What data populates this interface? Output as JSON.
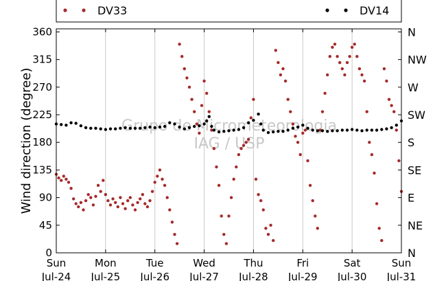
{
  "chart_data": {
    "type": "scatter",
    "ylabel": "Wind direction (degree)",
    "ylim": [
      0,
      365
    ],
    "xlim": [
      0,
      7
    ],
    "grid": "x-major",
    "legend_placement": "top, spanning plot",
    "y_ticks": [
      0,
      45,
      90,
      135,
      180,
      225,
      270,
      315,
      360
    ],
    "y_ticks_right": [
      {
        "value": 0,
        "label": "N"
      },
      {
        "value": 45,
        "label": "NE"
      },
      {
        "value": 90,
        "label": "E"
      },
      {
        "value": 135,
        "label": "SE"
      },
      {
        "value": 180,
        "label": "S"
      },
      {
        "value": 225,
        "label": "SW"
      },
      {
        "value": 270,
        "label": "W"
      },
      {
        "value": 315,
        "label": "NW"
      },
      {
        "value": 360,
        "label": "N"
      }
    ],
    "x_ticks": [
      {
        "value": 0,
        "day": "Sun",
        "date": "Jul-24"
      },
      {
        "value": 1,
        "day": "Mon",
        "date": "Jul-25"
      },
      {
        "value": 2,
        "day": "Tue",
        "date": "Jul-26"
      },
      {
        "value": 3,
        "day": "Wed",
        "date": "Jul-27"
      },
      {
        "value": 4,
        "day": "Thu",
        "date": "Jul-28"
      },
      {
        "value": 5,
        "day": "Fri",
        "date": "Jul-29"
      },
      {
        "value": 6,
        "day": "Sat",
        "date": "Jul-30"
      },
      {
        "value": 7,
        "day": "Sun",
        "date": "Jul-31"
      }
    ],
    "watermark": [
      "Grupo de Micrometeorologia",
      "IAG / USP"
    ],
    "series": [
      {
        "name": "DV33",
        "color": "#a52a2a",
        "points": [
          [
            0.0,
            128
          ],
          [
            0.05,
            122
          ],
          [
            0.1,
            118
          ],
          [
            0.15,
            125
          ],
          [
            0.2,
            120
          ],
          [
            0.25,
            115
          ],
          [
            0.3,
            105
          ],
          [
            0.35,
            88
          ],
          [
            0.4,
            80
          ],
          [
            0.45,
            75
          ],
          [
            0.5,
            82
          ],
          [
            0.55,
            70
          ],
          [
            0.6,
            85
          ],
          [
            0.65,
            95
          ],
          [
            0.7,
            90
          ],
          [
            0.75,
            78
          ],
          [
            0.8,
            92
          ],
          [
            0.85,
            110
          ],
          [
            0.9,
            100
          ],
          [
            0.95,
            118
          ],
          [
            1.0,
            95
          ],
          [
            1.05,
            85
          ],
          [
            1.1,
            78
          ],
          [
            1.15,
            88
          ],
          [
            1.2,
            82
          ],
          [
            1.25,
            75
          ],
          [
            1.3,
            90
          ],
          [
            1.35,
            80
          ],
          [
            1.4,
            72
          ],
          [
            1.45,
            85
          ],
          [
            1.5,
            90
          ],
          [
            1.55,
            78
          ],
          [
            1.6,
            70
          ],
          [
            1.65,
            82
          ],
          [
            1.7,
            88
          ],
          [
            1.75,
            95
          ],
          [
            1.8,
            80
          ],
          [
            1.85,
            75
          ],
          [
            1.9,
            85
          ],
          [
            1.95,
            100
          ],
          [
            2.0,
            115
          ],
          [
            2.05,
            125
          ],
          [
            2.1,
            135
          ],
          [
            2.15,
            120
          ],
          [
            2.2,
            110
          ],
          [
            2.25,
            90
          ],
          [
            2.3,
            70
          ],
          [
            2.35,
            50
          ],
          [
            2.4,
            30
          ],
          [
            2.45,
            15
          ],
          [
            2.5,
            340
          ],
          [
            2.55,
            320
          ],
          [
            2.6,
            300
          ],
          [
            2.65,
            285
          ],
          [
            2.7,
            270
          ],
          [
            2.75,
            250
          ],
          [
            2.8,
            230
          ],
          [
            2.85,
            210
          ],
          [
            2.9,
            195
          ],
          [
            2.95,
            240
          ],
          [
            3.0,
            280
          ],
          [
            3.05,
            260
          ],
          [
            3.1,
            230
          ],
          [
            3.15,
            200
          ],
          [
            3.2,
            170
          ],
          [
            3.25,
            140
          ],
          [
            3.3,
            110
          ],
          [
            3.35,
            60
          ],
          [
            3.4,
            30
          ],
          [
            3.45,
            15
          ],
          [
            3.5,
            60
          ],
          [
            3.55,
            90
          ],
          [
            3.6,
            120
          ],
          [
            3.65,
            140
          ],
          [
            3.7,
            160
          ],
          [
            3.75,
            170
          ],
          [
            3.8,
            175
          ],
          [
            3.85,
            180
          ],
          [
            3.9,
            185
          ],
          [
            3.95,
            220
          ],
          [
            4.0,
            250
          ],
          [
            4.05,
            120
          ],
          [
            4.1,
            95
          ],
          [
            4.15,
            85
          ],
          [
            4.2,
            70
          ],
          [
            4.25,
            40
          ],
          [
            4.3,
            30
          ],
          [
            4.35,
            45
          ],
          [
            4.4,
            20
          ],
          [
            4.45,
            330
          ],
          [
            4.5,
            310
          ],
          [
            4.55,
            290
          ],
          [
            4.6,
            300
          ],
          [
            4.65,
            280
          ],
          [
            4.7,
            250
          ],
          [
            4.75,
            230
          ],
          [
            4.8,
            210
          ],
          [
            4.85,
            190
          ],
          [
            4.9,
            180
          ],
          [
            4.95,
            160
          ],
          [
            5.0,
            195
          ],
          [
            5.05,
            200
          ],
          [
            5.1,
            150
          ],
          [
            5.15,
            110
          ],
          [
            5.2,
            85
          ],
          [
            5.25,
            60
          ],
          [
            5.3,
            40
          ],
          [
            5.35,
            200
          ],
          [
            5.4,
            230
          ],
          [
            5.45,
            260
          ],
          [
            5.5,
            290
          ],
          [
            5.55,
            320
          ],
          [
            5.6,
            335
          ],
          [
            5.65,
            340
          ],
          [
            5.7,
            320
          ],
          [
            5.75,
            310
          ],
          [
            5.8,
            300
          ],
          [
            5.85,
            290
          ],
          [
            5.9,
            310
          ],
          [
            5.95,
            320
          ],
          [
            6.0,
            335
          ],
          [
            6.05,
            340
          ],
          [
            6.1,
            320
          ],
          [
            6.15,
            300
          ],
          [
            6.2,
            290
          ],
          [
            6.25,
            280
          ],
          [
            6.3,
            230
          ],
          [
            6.35,
            180
          ],
          [
            6.4,
            160
          ],
          [
            6.45,
            130
          ],
          [
            6.5,
            80
          ],
          [
            6.55,
            40
          ],
          [
            6.6,
            20
          ],
          [
            6.65,
            300
          ],
          [
            6.7,
            280
          ],
          [
            6.75,
            250
          ],
          [
            6.8,
            240
          ],
          [
            6.85,
            230
          ],
          [
            6.9,
            200
          ],
          [
            6.95,
            150
          ],
          [
            7.0,
            100
          ]
        ]
      },
      {
        "name": "DV14",
        "color": "#000000",
        "points": [
          [
            0.0,
            210
          ],
          [
            0.1,
            209
          ],
          [
            0.2,
            208
          ],
          [
            0.3,
            212
          ],
          [
            0.4,
            211
          ],
          [
            0.5,
            207
          ],
          [
            0.6,
            204
          ],
          [
            0.7,
            203
          ],
          [
            0.8,
            203
          ],
          [
            0.9,
            202
          ],
          [
            1.0,
            201
          ],
          [
            1.1,
            202
          ],
          [
            1.2,
            202
          ],
          [
            1.3,
            203
          ],
          [
            1.4,
            204
          ],
          [
            1.5,
            203
          ],
          [
            1.6,
            203
          ],
          [
            1.7,
            203
          ],
          [
            1.8,
            204
          ],
          [
            1.9,
            205
          ],
          [
            2.0,
            204
          ],
          [
            2.1,
            205
          ],
          [
            2.2,
            206
          ],
          [
            2.3,
            212
          ],
          [
            2.4,
            210
          ],
          [
            2.5,
            205
          ],
          [
            2.6,
            202
          ],
          [
            2.7,
            204
          ],
          [
            2.8,
            206
          ],
          [
            2.9,
            207
          ],
          [
            3.0,
            210
          ],
          [
            3.05,
            215
          ],
          [
            3.1,
            222
          ],
          [
            3.15,
            206
          ],
          [
            3.2,
            200
          ],
          [
            3.3,
            197
          ],
          [
            3.4,
            198
          ],
          [
            3.5,
            199
          ],
          [
            3.6,
            200
          ],
          [
            3.7,
            201
          ],
          [
            3.8,
            204
          ],
          [
            3.9,
            212
          ],
          [
            4.0,
            216
          ],
          [
            4.1,
            226
          ],
          [
            4.15,
            210
          ],
          [
            4.2,
            200
          ],
          [
            4.3,
            196
          ],
          [
            4.4,
            197
          ],
          [
            4.5,
            198
          ],
          [
            4.6,
            198
          ],
          [
            4.7,
            200
          ],
          [
            4.8,
            203
          ],
          [
            4.9,
            205
          ],
          [
            5.0,
            208
          ],
          [
            5.1,
            203
          ],
          [
            5.2,
            200
          ],
          [
            5.3,
            199
          ],
          [
            5.4,
            199
          ],
          [
            5.5,
            198
          ],
          [
            5.6,
            199
          ],
          [
            5.7,
            199
          ],
          [
            5.8,
            200
          ],
          [
            5.9,
            200
          ],
          [
            6.0,
            201
          ],
          [
            6.1,
            200
          ],
          [
            6.2,
            199
          ],
          [
            6.3,
            200
          ],
          [
            6.4,
            200
          ],
          [
            6.5,
            200
          ],
          [
            6.6,
            201
          ],
          [
            6.7,
            202
          ],
          [
            6.8,
            204
          ],
          [
            6.9,
            208
          ],
          [
            7.0,
            215
          ]
        ]
      }
    ]
  }
}
